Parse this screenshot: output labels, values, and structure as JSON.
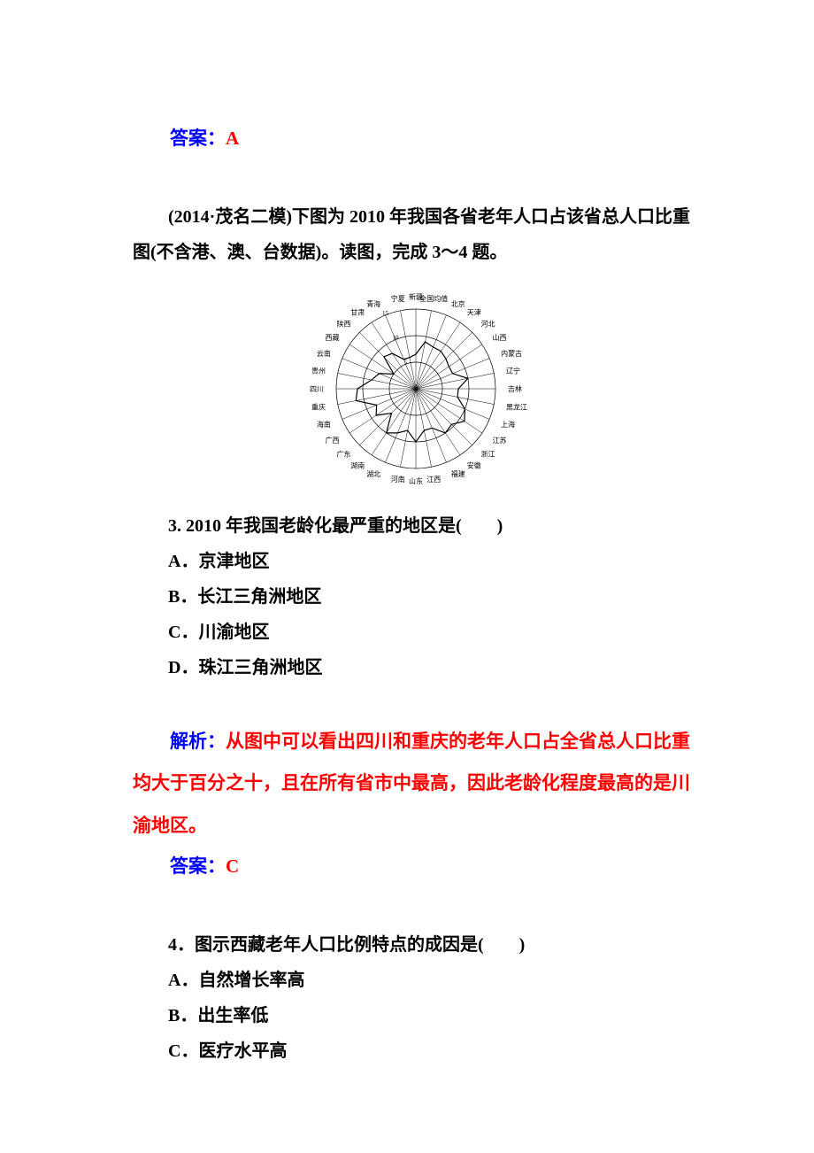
{
  "answer1": {
    "label": "答案：",
    "value": "A"
  },
  "context": "(2014·茂名二模)下图为 2010 年我国各省老年人口占该省总人口比重图(不含港、澳、台数据)。读图，完成 3～4 题。",
  "chart": {
    "type": "radar",
    "title": "",
    "rings": [
      5,
      10,
      15
    ],
    "ring_color": "#000000",
    "background_color": "#ffffff",
    "axis_labels": [
      "新疆",
      "全国均值",
      "北京",
      "天津",
      "河北",
      "山西",
      "内蒙古",
      "辽宁",
      "吉林",
      "黑龙江",
      "上海",
      "江苏",
      "浙江",
      "安徽",
      "福建",
      "江西",
      "山东",
      "河南",
      "湖北",
      "湖南",
      "广东",
      "广西",
      "海南",
      "重庆",
      "四川",
      "贵州",
      "云南",
      "西藏",
      "陕西",
      "甘肃",
      "青海",
      "宁夏"
    ],
    "values": [
      6.5,
      9.0,
      8.5,
      8.5,
      8.0,
      7.5,
      7.5,
      10.0,
      8.0,
      8.0,
      10.0,
      11.0,
      9.5,
      10.0,
      8.0,
      8.0,
      10.0,
      8.0,
      9.0,
      10.0,
      6.5,
      9.0,
      8.0,
      11.5,
      11.0,
      8.5,
      7.5,
      5.0,
      8.5,
      8.0,
      6.0,
      6.0
    ],
    "line_color": "#000000",
    "label_fontsize": 8
  },
  "q3": {
    "stem": "3. 2010 年我国老龄化最严重的地区是(　　)",
    "A": "A．京津地区",
    "B": "B．长江三角洲地区",
    "C": "C．川渝地区",
    "D": "D．珠江三角洲地区"
  },
  "analysis3": {
    "label": "解析：",
    "body": "从图中可以看出四川和重庆的老年人口占全省总人口比重均大于百分之十，且在所有省市中最高，因此老龄化程度最高的是川渝地区。"
  },
  "answer3": {
    "label": "答案：",
    "value": "C"
  },
  "q4": {
    "stem": "4．图示西藏老年人口比例特点的成因是(　　)",
    "A": "A．自然增长率高",
    "B": "B．出生率低",
    "C": "C．医疗水平高"
  }
}
